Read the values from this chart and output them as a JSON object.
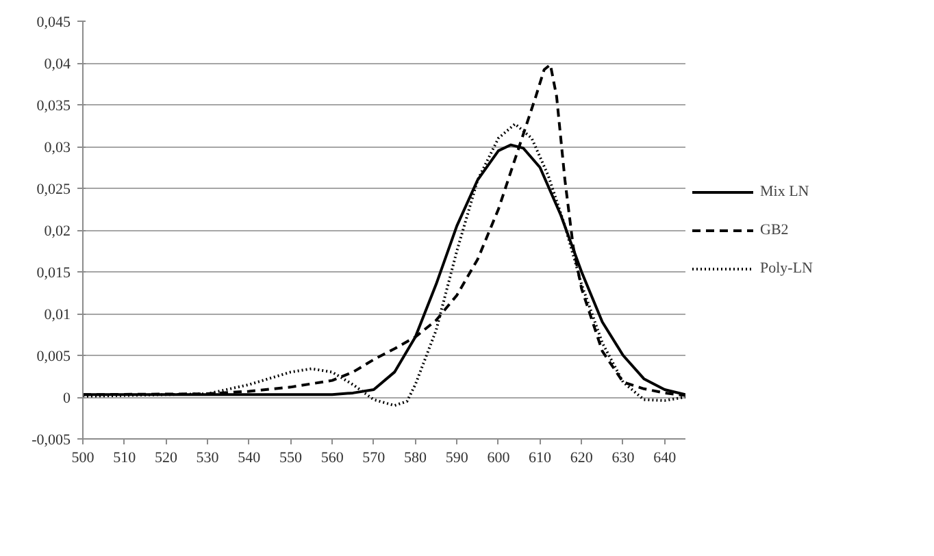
{
  "chart_data": {
    "type": "line",
    "xlim": [
      500,
      645
    ],
    "xticks": [
      500,
      510,
      520,
      530,
      540,
      550,
      560,
      570,
      580,
      590,
      600,
      610,
      620,
      630,
      640
    ],
    "ylim": [
      -0.005,
      0.045
    ],
    "yticks": [
      {
        "value": -0.005,
        "label": "-0,005"
      },
      {
        "value": 0,
        "label": "0"
      },
      {
        "value": 0.005,
        "label": "0,005"
      },
      {
        "value": 0.01,
        "label": "0,01"
      },
      {
        "value": 0.015,
        "label": "0,015"
      },
      {
        "value": 0.02,
        "label": "0,02"
      },
      {
        "value": 0.025,
        "label": "0,025"
      },
      {
        "value": 0.03,
        "label": "0,03"
      },
      {
        "value": 0.035,
        "label": "0,035"
      },
      {
        "value": 0.04,
        "label": "0,04"
      },
      {
        "value": 0.045,
        "label": "0,045"
      }
    ],
    "grid": "y",
    "legend": "right",
    "marker": "none",
    "series": [
      {
        "name": "Mix LN",
        "color": "#000000",
        "line_style": "solid",
        "x": [
          500,
          530,
          560,
          565,
          570,
          575,
          580,
          585,
          590,
          595,
          600,
          603,
          606,
          610,
          615,
          620,
          625,
          630,
          635,
          640,
          645
        ],
        "values": [
          0.0003,
          0.0003,
          0.0003,
          0.0005,
          0.0009,
          0.003,
          0.0072,
          0.0135,
          0.0205,
          0.026,
          0.0295,
          0.0302,
          0.0298,
          0.0275,
          0.0218,
          0.015,
          0.009,
          0.005,
          0.0022,
          0.0009,
          0.0003
        ]
      },
      {
        "name": "GB2",
        "color": "#000000",
        "line_style": "dashed",
        "x": [
          500,
          530,
          540,
          550,
          560,
          565,
          570,
          575,
          580,
          585,
          590,
          595,
          600,
          605,
          609,
          611,
          612.5,
          614,
          616,
          618,
          620,
          625,
          630,
          635,
          640,
          645
        ],
        "values": [
          0.0003,
          0.0004,
          0.0007,
          0.0012,
          0.002,
          0.003,
          0.0045,
          0.0058,
          0.0072,
          0.0092,
          0.0122,
          0.0165,
          0.0225,
          0.03,
          0.036,
          0.0392,
          0.0398,
          0.036,
          0.026,
          0.018,
          0.013,
          0.0055,
          0.0018,
          0.001,
          0.0005,
          0.0002
        ]
      },
      {
        "name": "Poly-LN",
        "color": "#000000",
        "line_style": "dotted",
        "x": [
          500,
          530,
          540,
          550,
          555,
          560,
          565,
          570,
          575,
          578,
          580,
          585,
          590,
          595,
          600,
          604,
          608,
          612,
          616,
          620,
          625,
          630,
          635,
          640,
          645
        ],
        "values": [
          0.0001,
          0.0004,
          0.0015,
          0.003,
          0.0034,
          0.003,
          0.0015,
          -0.0003,
          -0.001,
          -0.0005,
          0.0015,
          0.008,
          0.0175,
          0.026,
          0.031,
          0.0327,
          0.031,
          0.0265,
          0.0205,
          0.0135,
          0.0065,
          0.0018,
          -0.0003,
          -0.0004,
          0.0
        ]
      }
    ]
  }
}
